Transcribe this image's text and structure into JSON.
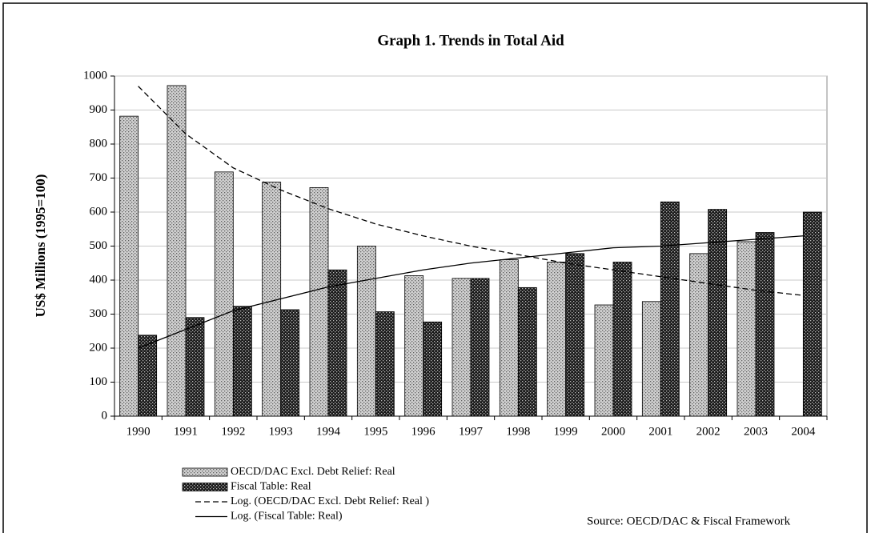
{
  "chart_data": {
    "type": "bar",
    "title": "Graph 1. Trends in Total Aid",
    "y_label": "US$ Millions (1995=100)",
    "source": "Source: OECD/DAC & Fiscal Framework",
    "categories": [
      "1990",
      "1991",
      "1992",
      "1993",
      "1994",
      "1995",
      "1996",
      "1997",
      "1998",
      "1999",
      "2000",
      "2001",
      "2002",
      "2003",
      "2004"
    ],
    "series": [
      {
        "name": "OECD/DAC Excl. Debt Relief: Real",
        "type": "bar",
        "color": "#d0d0d0",
        "pattern_color": "#606060",
        "values": [
          882,
          972,
          718,
          688,
          672,
          500,
          413,
          405,
          460,
          453,
          327,
          337,
          478,
          513,
          null
        ]
      },
      {
        "name": "Fiscal Table: Real",
        "type": "bar",
        "color": "#1a1a1a",
        "pattern_color": "#bbbbbb",
        "values": [
          238,
          290,
          323,
          313,
          430,
          307,
          277,
          405,
          378,
          478,
          453,
          630,
          608,
          540,
          600
        ]
      },
      {
        "name": "Log. (OECD/DAC Excl. Debt Relief: Real )",
        "type": "line",
        "color": "#000000",
        "dashed": true,
        "values": [
          970,
          830,
          730,
          665,
          610,
          565,
          530,
          500,
          475,
          450,
          430,
          410,
          390,
          370,
          355
        ]
      },
      {
        "name": "Log. (Fiscal Table: Real)",
        "type": "line",
        "color": "#000000",
        "dashed": false,
        "values": [
          200,
          255,
          310,
          345,
          380,
          405,
          430,
          450,
          465,
          480,
          495,
          500,
          510,
          520,
          530
        ]
      }
    ],
    "ylim": [
      0,
      1000
    ],
    "yticks": [
      0,
      100,
      200,
      300,
      400,
      500,
      600,
      700,
      800,
      900,
      1000
    ],
    "grid": true
  }
}
